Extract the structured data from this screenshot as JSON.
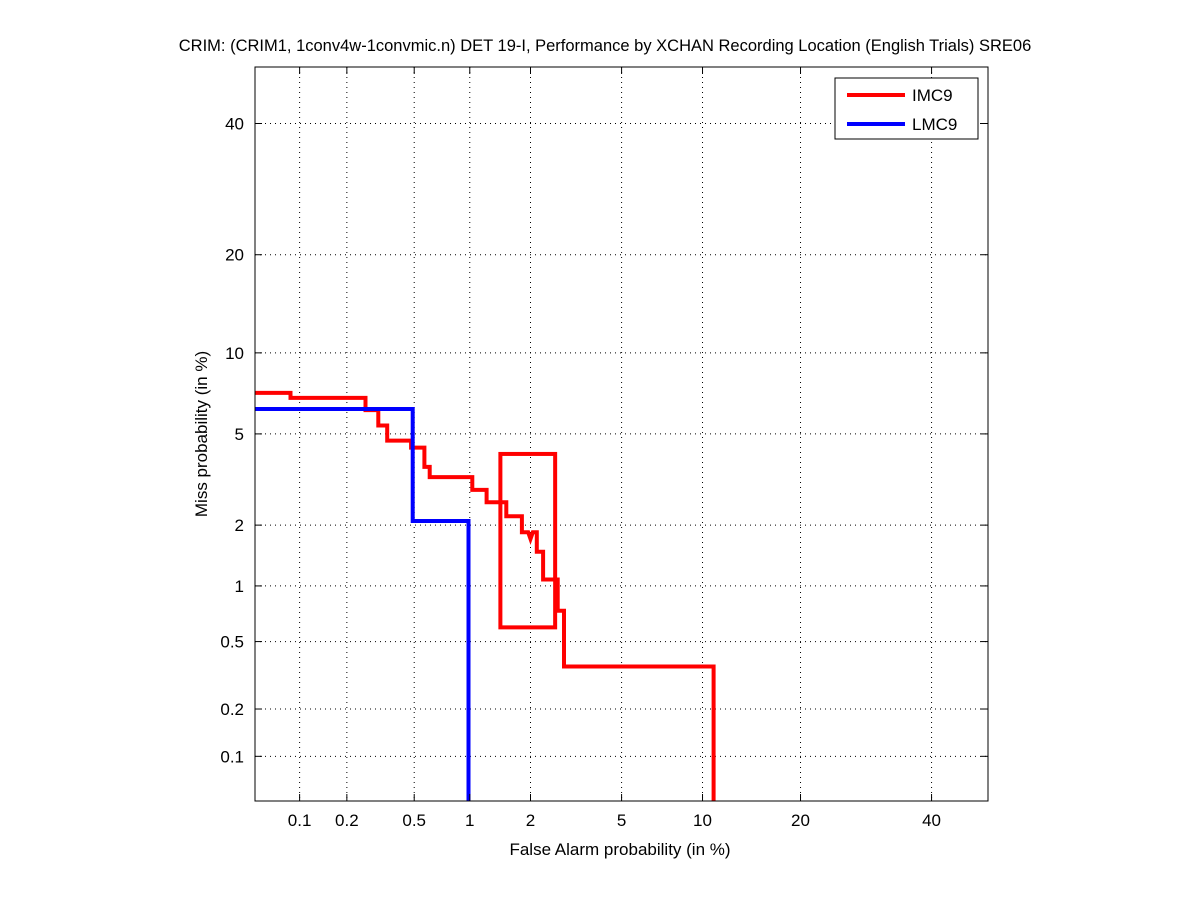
{
  "chart_data": {
    "type": "line",
    "title": "CRIM: (CRIM1, 1conv4w-1convmic.n) DET 19-I,  Performance by XCHAN Recording Location (English Trials) SRE06",
    "xlabel": "False Alarm probability (in %)",
    "ylabel": "Miss probability (in %)",
    "xscale": "normal-deviate",
    "yscale": "normal-deviate",
    "xlim": [
      0.05,
      50
    ],
    "ylim": [
      0.05,
      50
    ],
    "grid": true,
    "legend_position": "top-right",
    "xticks": [
      {
        "v": 0.1,
        "label": "0.1"
      },
      {
        "v": 0.2,
        "label": "0.2"
      },
      {
        "v": 0.5,
        "label": "0.5"
      },
      {
        "v": 1,
        "label": "1"
      },
      {
        "v": 2,
        "label": "2"
      },
      {
        "v": 5,
        "label": "5"
      },
      {
        "v": 10,
        "label": "10"
      },
      {
        "v": 20,
        "label": "20"
      },
      {
        "v": 40,
        "label": "40"
      }
    ],
    "yticks": [
      {
        "v": 0.1,
        "label": "0.1"
      },
      {
        "v": 0.2,
        "label": "0.2"
      },
      {
        "v": 0.5,
        "label": "0.5"
      },
      {
        "v": 1,
        "label": "1"
      },
      {
        "v": 2,
        "label": "2"
      },
      {
        "v": 5,
        "label": "5"
      },
      {
        "v": 10,
        "label": "10"
      },
      {
        "v": 20,
        "label": "20"
      },
      {
        "v": 40,
        "label": "40"
      }
    ],
    "series": [
      {
        "name": "IMC9",
        "color": "#ff0000",
        "points": [
          [
            0.05,
            7.2
          ],
          [
            0.087,
            7.2
          ],
          [
            0.087,
            6.9
          ],
          [
            0.26,
            6.9
          ],
          [
            0.26,
            6.2
          ],
          [
            0.31,
            6.2
          ],
          [
            0.31,
            5.4
          ],
          [
            0.35,
            5.4
          ],
          [
            0.35,
            4.7
          ],
          [
            0.48,
            4.7
          ],
          [
            0.48,
            4.4
          ],
          [
            0.57,
            4.4
          ],
          [
            0.57,
            3.65
          ],
          [
            0.61,
            3.65
          ],
          [
            0.61,
            3.3
          ],
          [
            1.03,
            3.3
          ],
          [
            1.03,
            2.9
          ],
          [
            1.22,
            2.9
          ],
          [
            1.22,
            2.55
          ],
          [
            1.53,
            2.55
          ],
          [
            1.53,
            2.2
          ],
          [
            1.82,
            2.2
          ],
          [
            1.82,
            1.85
          ],
          [
            1.95,
            1.85
          ],
          [
            2.0,
            1.72
          ],
          [
            2.05,
            1.85
          ],
          [
            2.14,
            1.85
          ],
          [
            2.14,
            1.49
          ],
          [
            2.29,
            1.49
          ],
          [
            2.29,
            1.08
          ],
          [
            2.67,
            1.08
          ],
          [
            2.67,
            0.74
          ],
          [
            2.85,
            0.74
          ],
          [
            2.85,
            0.36
          ],
          [
            10.9,
            0.36
          ],
          [
            10.9,
            0.05
          ]
        ],
        "confidence_box": {
          "x": [
            1.43,
            2.6
          ],
          "y": [
            0.6,
            4.14
          ]
        }
      },
      {
        "name": "LMC9",
        "color": "#0000ff",
        "points": [
          [
            0.05,
            6.26
          ],
          [
            0.49,
            6.26
          ],
          [
            0.49,
            2.09
          ],
          [
            0.985,
            2.09
          ],
          [
            0.985,
            0.05
          ]
        ]
      }
    ]
  }
}
